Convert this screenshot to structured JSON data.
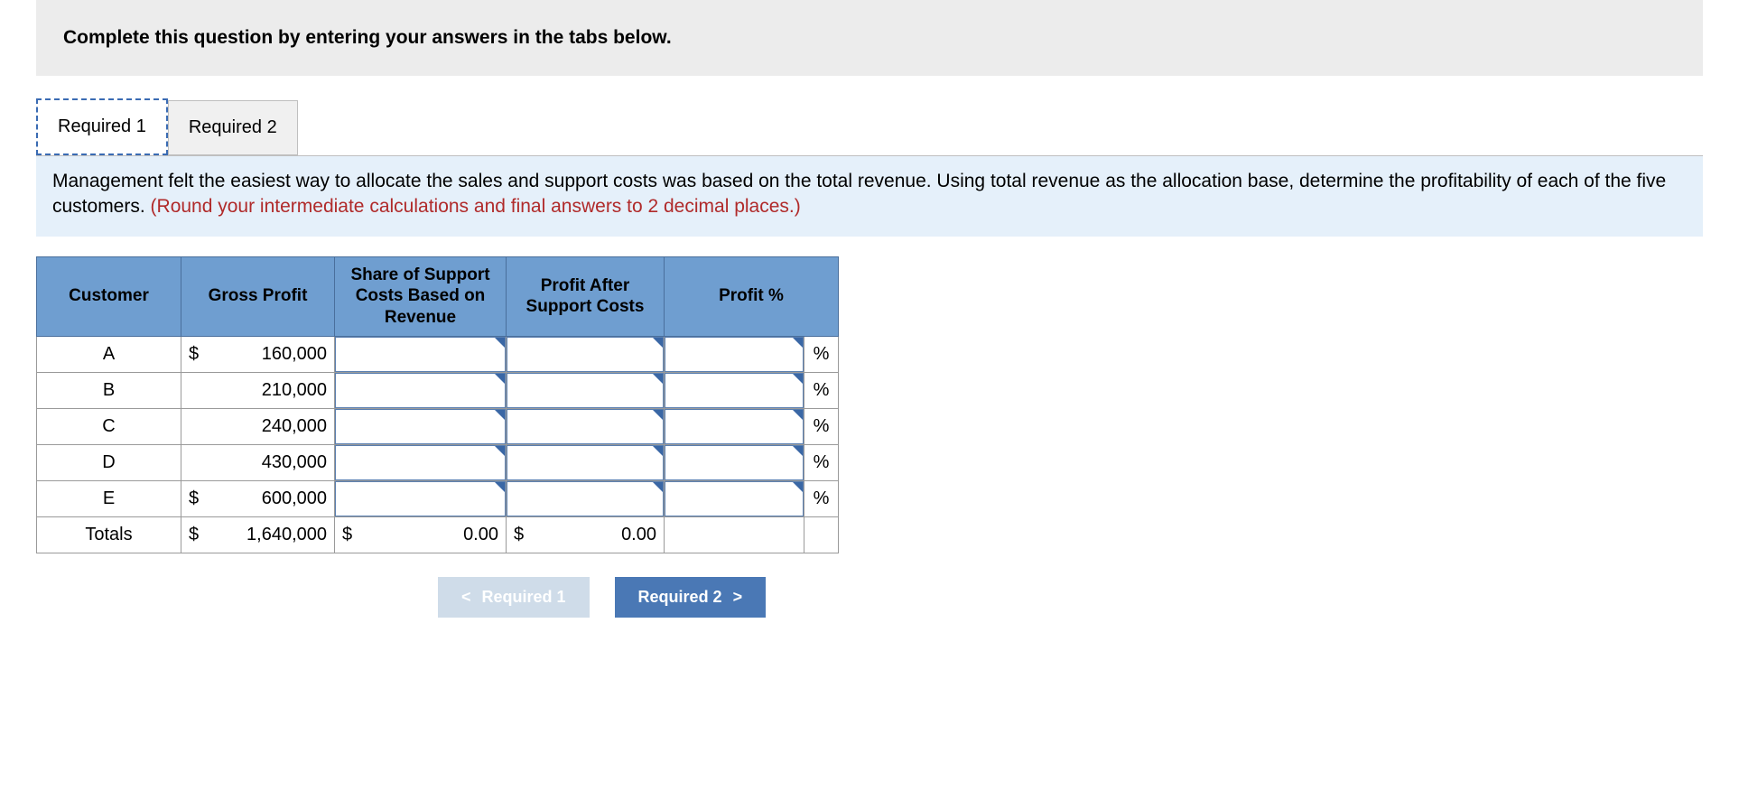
{
  "instruction": "Complete this question by entering your answers in the tabs below.",
  "tabs": [
    {
      "label": "Required 1",
      "active": true
    },
    {
      "label": "Required 2",
      "active": false
    }
  ],
  "question": {
    "text": "Management felt the easiest way to allocate the sales and support costs was based on the total revenue. Using total revenue as the allocation base, determine the profitability of each of the five customers. ",
    "hint": "(Round your intermediate calculations and final answers to 2 decimal places.)"
  },
  "table": {
    "headers": {
      "customer": "Customer",
      "gross_profit": "Gross Profit",
      "share": "Share of Support Costs Based on Revenue",
      "profit_after": "Profit After Support Costs",
      "profit_pct": "Profit %"
    },
    "rows": [
      {
        "customer": "A",
        "gp_dollar": "$",
        "gp": "160,000",
        "share": "",
        "after": "",
        "pct": "",
        "pct_sign": "%"
      },
      {
        "customer": "B",
        "gp_dollar": "",
        "gp": "210,000",
        "share": "",
        "after": "",
        "pct": "",
        "pct_sign": "%"
      },
      {
        "customer": "C",
        "gp_dollar": "",
        "gp": "240,000",
        "share": "",
        "after": "",
        "pct": "",
        "pct_sign": "%"
      },
      {
        "customer": "D",
        "gp_dollar": "",
        "gp": "430,000",
        "share": "",
        "after": "",
        "pct": "",
        "pct_sign": "%"
      },
      {
        "customer": "E",
        "gp_dollar": "$",
        "gp": "600,000",
        "share": "",
        "after": "",
        "pct": "",
        "pct_sign": "%"
      }
    ],
    "totals": {
      "label": "Totals",
      "gp_dollar": "$",
      "gp": "1,640,000",
      "share_dollar": "$",
      "share": "0.00",
      "after_dollar": "$",
      "after": "0.00"
    }
  },
  "nav": {
    "prev_label": "Required 1",
    "next_label": "Required 2",
    "chev_left": "<",
    "chev_right": ">"
  },
  "colors": {
    "header_bg": "#6f9ed0",
    "instruction_bg": "#ececec",
    "question_bg": "#e5f0fa",
    "hint_color": "#b02a2a",
    "nav_next_bg": "#4a78b5",
    "nav_prev_bg": "#cfdce9",
    "input_tri": "#3a67a5"
  }
}
